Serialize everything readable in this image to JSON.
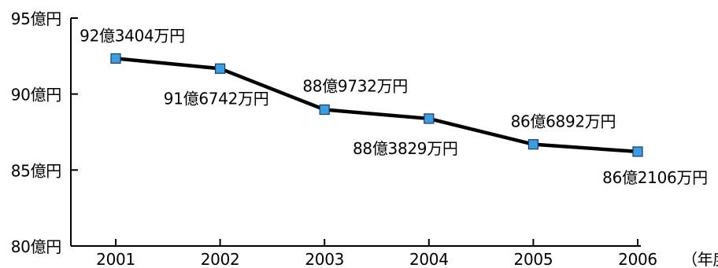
{
  "chart_data": {
    "type": "line",
    "title": "",
    "xlabel": "",
    "ylabel": "",
    "x_unit_label": "（年度）",
    "categories": [
      "2001",
      "2002",
      "2003",
      "2004",
      "2005",
      "2006"
    ],
    "series": [
      {
        "values": [
          92.3404,
          91.6742,
          88.9732,
          88.3829,
          86.6892,
          86.2106
        ],
        "data_labels": [
          "92億3404万円",
          "91億6742万円",
          "88億9732万円",
          "88億3829万円",
          "86億6892万円",
          "86億2106万円"
        ],
        "color": "#000000",
        "marker_color": "#3a9ee0"
      }
    ],
    "y_ticks": [
      80,
      85,
      90,
      95
    ],
    "y_tick_labels": [
      "80億円",
      "85億円",
      "90億円",
      "95億円"
    ],
    "ylim": [
      80,
      95
    ],
    "grid": false,
    "legend": "none"
  }
}
